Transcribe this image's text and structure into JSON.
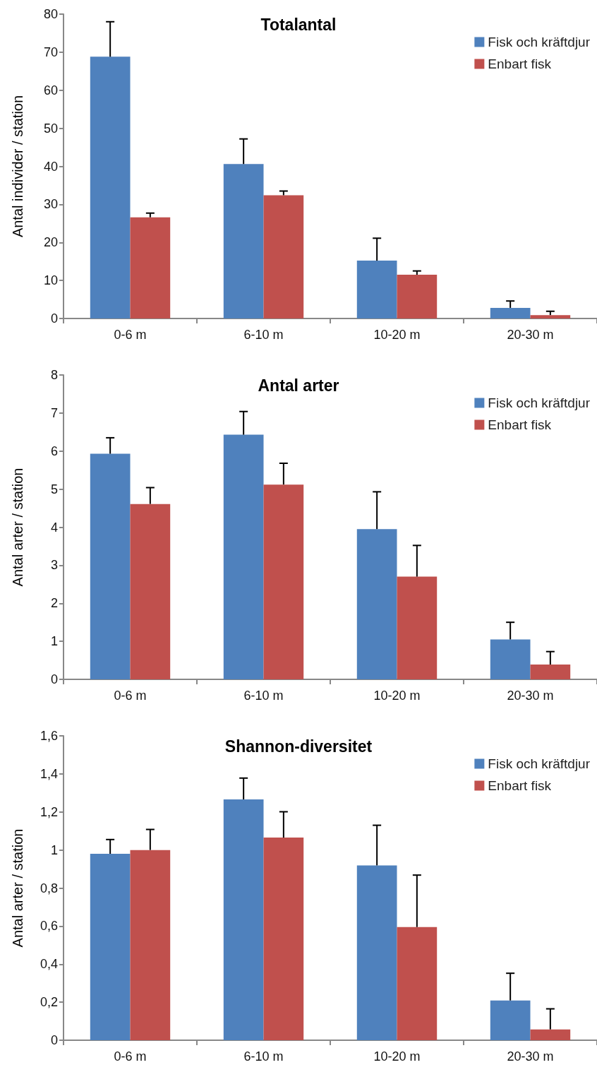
{
  "chart_data": [
    {
      "type": "bar",
      "title": "Totalantal",
      "ylabel": "Antal individer / station",
      "categories": [
        "0-6 m",
        "6-10 m",
        "10-20 m",
        "20-30 m"
      ],
      "legend": "top right",
      "ylim": [
        0,
        80
      ],
      "yticks": [
        0,
        10,
        20,
        30,
        40,
        50,
        60,
        70,
        80
      ],
      "series": [
        {
          "name": "Fisk och kräftdjur",
          "color": "#4f81bd",
          "values": [
            68.8,
            40.6,
            15.2,
            2.8
          ],
          "errors": [
            [
              68.8,
              78
            ],
            [
              40.6,
              47.2
            ],
            [
              15.2,
              21.1
            ],
            [
              2.8,
              4.6
            ]
          ]
        },
        {
          "name": "Enbart fisk",
          "color": "#c0504d",
          "values": [
            26.6,
            32.4,
            11.5,
            0.9
          ],
          "errors": [
            [
              26.6,
              27.7
            ],
            [
              32.4,
              33.5
            ],
            [
              11.5,
              12.5
            ],
            [
              0.9,
              1.9
            ]
          ]
        }
      ]
    },
    {
      "type": "bar",
      "title": "Antal arter",
      "ylabel": "Antal arter / station",
      "categories": [
        "0-6 m",
        "6-10 m",
        "10-20 m",
        "20-30 m"
      ],
      "legend": "top right",
      "ylim": [
        0,
        8
      ],
      "yticks": [
        0,
        1,
        2,
        3,
        4,
        5,
        6,
        7,
        8
      ],
      "series": [
        {
          "name": "Fisk och kräftdjur",
          "color": "#4f81bd",
          "values": [
            5.93,
            6.43,
            3.95,
            1.05
          ],
          "errors": [
            [
              5.93,
              6.35
            ],
            [
              6.43,
              7.04
            ],
            [
              3.95,
              4.93
            ],
            [
              1.05,
              1.5
            ]
          ]
        },
        {
          "name": "Enbart fisk",
          "color": "#c0504d",
          "values": [
            4.61,
            5.12,
            2.7,
            0.39
          ],
          "errors": [
            [
              4.61,
              5.04
            ],
            [
              5.12,
              5.68
            ],
            [
              2.7,
              3.52
            ],
            [
              0.39,
              0.73
            ]
          ]
        }
      ]
    },
    {
      "type": "bar",
      "title": "Shannon-diversitet",
      "ylabel": "Antal arter / station",
      "categories": [
        "0-6 m",
        "6-10 m",
        "10-20 m",
        "20-30 m"
      ],
      "legend": "top right",
      "ylim": [
        0,
        1.6
      ],
      "yticks": [
        0,
        {
          "value": 0.2,
          "label": "0,2"
        },
        {
          "value": 0.4,
          "label": "0,4"
        },
        {
          "value": 0.6,
          "label": "0,6"
        },
        {
          "value": 0.8,
          "label": "0,8"
        },
        1,
        {
          "value": 1.2,
          "label": "1,2"
        },
        {
          "value": 1.4,
          "label": "1,4"
        },
        {
          "value": 1.6,
          "label": "1,6"
        }
      ],
      "series": [
        {
          "name": "Fisk och kräftdjur",
          "color": "#4f81bd",
          "values": [
            0.98,
            1.266,
            0.919,
            0.209
          ],
          "errors": [
            [
              0.98,
              1.055
            ],
            [
              1.266,
              1.378
            ],
            [
              0.919,
              1.13
            ],
            [
              0.209,
              0.352
            ]
          ]
        },
        {
          "name": "Enbart fisk",
          "color": "#c0504d",
          "values": [
            1.0,
            1.065,
            0.595,
            0.057
          ],
          "errors": [
            [
              1.0,
              1.108
            ],
            [
              1.065,
              1.201
            ],
            [
              0.595,
              0.868
            ],
            [
              0.057,
              0.165
            ]
          ]
        }
      ]
    }
  ]
}
